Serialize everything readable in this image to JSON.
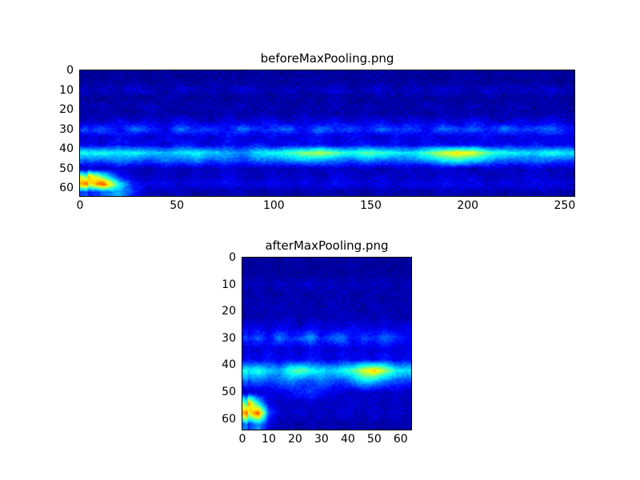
{
  "figure": {
    "background_color": "#ffffff",
    "colormap_name": "jet"
  },
  "chart_data": [
    {
      "type": "heatmap",
      "title": "beforeMaxPooling.png",
      "xlabel": "",
      "ylabel": "",
      "xlim": [
        0,
        255
      ],
      "ylim": [
        0,
        64
      ],
      "xticks": [
        0,
        50,
        100,
        150,
        200,
        250
      ],
      "yticks": [
        0,
        10,
        20,
        30,
        40,
        50,
        60
      ],
      "colormap": "jet",
      "grid_cols": 32,
      "grid_rows": 16,
      "noise": 0.08,
      "seed": 1234567,
      "notable_features": [
        "dark blue background with fine speckle noise",
        "speckled light-blue band around y=28-32 across full width",
        "bright cyan horizontal band at y=40-44 across full width",
        "green-yellow hotspots in band near x=112-136 and bright yellow near x=184-208",
        "red-orange diagonal blob at bottom-left around x=0-20, y=52-62"
      ],
      "values": [
        [
          0.03,
          0.02,
          0.04,
          0.02,
          0.03,
          0.05,
          0.02,
          0.03,
          0.02,
          0.04,
          0.03,
          0.02,
          0.05,
          0.03,
          0.02,
          0.04,
          0.02,
          0.03,
          0.05,
          0.02,
          0.03,
          0.04,
          0.02,
          0.03,
          0.02,
          0.05,
          0.03,
          0.02,
          0.04,
          0.03,
          0.02,
          0.03
        ],
        [
          0.02,
          0.04,
          0.03,
          0.05,
          0.02,
          0.03,
          0.04,
          0.02,
          0.05,
          0.03,
          0.02,
          0.04,
          0.03,
          0.02,
          0.05,
          0.03,
          0.04,
          0.02,
          0.03,
          0.05,
          0.02,
          0.04,
          0.03,
          0.02,
          0.05,
          0.03,
          0.02,
          0.04,
          0.02,
          0.05,
          0.03,
          0.02
        ],
        [
          0.05,
          0.08,
          0.04,
          0.1,
          0.06,
          0.04,
          0.09,
          0.05,
          0.07,
          0.04,
          0.1,
          0.06,
          0.05,
          0.08,
          0.04,
          0.07,
          0.1,
          0.05,
          0.06,
          0.09,
          0.04,
          0.08,
          0.05,
          0.1,
          0.06,
          0.04,
          0.09,
          0.05,
          0.08,
          0.06,
          0.1,
          0.05
        ],
        [
          0.03,
          0.02,
          0.04,
          0.03,
          0.02,
          0.05,
          0.03,
          0.02,
          0.04,
          0.02,
          0.03,
          0.05,
          0.02,
          0.04,
          0.03,
          0.02,
          0.05,
          0.03,
          0.02,
          0.04,
          0.03,
          0.05,
          0.02,
          0.03,
          0.04,
          0.02,
          0.05,
          0.03,
          0.02,
          0.04,
          0.03,
          0.02
        ],
        [
          0.04,
          0.06,
          0.03,
          0.05,
          0.07,
          0.04,
          0.03,
          0.06,
          0.05,
          0.03,
          0.07,
          0.04,
          0.06,
          0.03,
          0.05,
          0.04,
          0.07,
          0.03,
          0.06,
          0.04,
          0.05,
          0.03,
          0.07,
          0.05,
          0.04,
          0.06,
          0.03,
          0.05,
          0.07,
          0.04,
          0.06,
          0.03
        ],
        [
          0.03,
          0.05,
          0.04,
          0.03,
          0.06,
          0.04,
          0.05,
          0.03,
          0.04,
          0.06,
          0.03,
          0.05,
          0.04,
          0.03,
          0.06,
          0.05,
          0.03,
          0.04,
          0.06,
          0.03,
          0.05,
          0.04,
          0.03,
          0.06,
          0.04,
          0.05,
          0.03,
          0.06,
          0.04,
          0.03,
          0.05,
          0.04
        ],
        [
          0.08,
          0.05,
          0.12,
          0.07,
          0.1,
          0.06,
          0.13,
          0.08,
          0.05,
          0.11,
          0.07,
          0.09,
          0.12,
          0.06,
          0.1,
          0.08,
          0.13,
          0.07,
          0.09,
          0.11,
          0.06,
          0.12,
          0.08,
          0.1,
          0.07,
          0.13,
          0.09,
          0.06,
          0.11,
          0.08,
          0.12,
          0.07
        ],
        [
          0.15,
          0.22,
          0.12,
          0.25,
          0.18,
          0.1,
          0.24,
          0.16,
          0.2,
          0.12,
          0.26,
          0.15,
          0.19,
          0.23,
          0.11,
          0.25,
          0.17,
          0.21,
          0.13,
          0.24,
          0.16,
          0.2,
          0.12,
          0.25,
          0.18,
          0.22,
          0.14,
          0.26,
          0.16,
          0.2,
          0.24,
          0.14
        ],
        [
          0.1,
          0.07,
          0.13,
          0.09,
          0.06,
          0.12,
          0.08,
          0.11,
          0.07,
          0.13,
          0.09,
          0.06,
          0.12,
          0.08,
          0.1,
          0.13,
          0.07,
          0.11,
          0.09,
          0.06,
          0.13,
          0.08,
          0.12,
          0.07,
          0.1,
          0.09,
          0.13,
          0.06,
          0.11,
          0.08,
          0.12,
          0.09
        ],
        [
          0.12,
          0.09,
          0.15,
          0.1,
          0.13,
          0.08,
          0.16,
          0.11,
          0.09,
          0.14,
          0.1,
          0.16,
          0.08,
          0.13,
          0.11,
          0.15,
          0.09,
          0.12,
          0.16,
          0.1,
          0.14,
          0.08,
          0.15,
          0.12,
          0.1,
          0.16,
          0.09,
          0.13,
          0.11,
          0.15,
          0.1,
          0.12
        ],
        [
          0.38,
          0.42,
          0.36,
          0.4,
          0.34,
          0.3,
          0.36,
          0.4,
          0.33,
          0.3,
          0.26,
          0.36,
          0.4,
          0.44,
          0.52,
          0.56,
          0.48,
          0.4,
          0.48,
          0.44,
          0.38,
          0.36,
          0.46,
          0.58,
          0.66,
          0.6,
          0.46,
          0.4,
          0.36,
          0.33,
          0.42,
          0.36
        ],
        [
          0.24,
          0.2,
          0.26,
          0.22,
          0.18,
          0.24,
          0.2,
          0.27,
          0.19,
          0.22,
          0.16,
          0.24,
          0.21,
          0.27,
          0.3,
          0.28,
          0.24,
          0.2,
          0.26,
          0.22,
          0.2,
          0.24,
          0.28,
          0.36,
          0.4,
          0.34,
          0.26,
          0.22,
          0.2,
          0.24,
          0.21,
          0.19
        ],
        [
          0.07,
          0.05,
          0.09,
          0.06,
          0.04,
          0.08,
          0.05,
          0.07,
          0.04,
          0.09,
          0.06,
          0.05,
          0.08,
          0.04,
          0.07,
          0.06,
          0.09,
          0.05,
          0.07,
          0.04,
          0.08,
          0.06,
          0.05,
          0.09,
          0.07,
          0.04,
          0.08,
          0.05,
          0.06,
          0.09,
          0.05,
          0.07
        ],
        [
          0.72,
          0.45,
          0.15,
          0.08,
          0.06,
          0.09,
          0.05,
          0.08,
          0.06,
          0.1,
          0.07,
          0.05,
          0.09,
          0.06,
          0.08,
          0.05,
          0.1,
          0.07,
          0.06,
          0.09,
          0.05,
          0.08,
          0.06,
          0.1,
          0.07,
          0.09,
          0.05,
          0.08,
          0.06,
          0.09,
          0.07,
          0.05
        ],
        [
          0.6,
          0.82,
          0.4,
          0.14,
          0.1,
          0.12,
          0.08,
          0.11,
          0.09,
          0.13,
          0.1,
          0.08,
          0.12,
          0.09,
          0.11,
          0.08,
          0.13,
          0.1,
          0.09,
          0.12,
          0.08,
          0.11,
          0.09,
          0.13,
          0.1,
          0.12,
          0.08,
          0.11,
          0.09,
          0.12,
          0.1,
          0.08
        ],
        [
          0.12,
          0.22,
          0.3,
          0.15,
          0.05,
          0.04,
          0.06,
          0.03,
          0.05,
          0.04,
          0.06,
          0.03,
          0.05,
          0.04,
          0.03,
          0.06,
          0.04,
          0.05,
          0.03,
          0.06,
          0.04,
          0.05,
          0.03,
          0.06,
          0.05,
          0.04,
          0.06,
          0.03,
          0.05,
          0.04,
          0.06,
          0.04
        ]
      ]
    },
    {
      "type": "heatmap",
      "title": "afterMaxPooling.png",
      "xlabel": "",
      "ylabel": "",
      "xlim": [
        0,
        64
      ],
      "ylim": [
        0,
        64
      ],
      "xticks": [
        0,
        10,
        20,
        30,
        40,
        50,
        60
      ],
      "yticks": [
        0,
        10,
        20,
        30,
        40,
        50,
        60
      ],
      "colormap": "jet",
      "grid_cols": 16,
      "grid_rows": 16,
      "noise": 0.07,
      "seed": 7654321,
      "notable_features": [
        "dark blue background with fine speckle noise",
        "speckled light-blue band around y=28-32",
        "bright cyan horizontal band at y=40-44 with yellow hotspot near x=44-52",
        "red-orange blob at bottom-left around x=0-8, y=52-60"
      ],
      "values": [
        [
          0.03,
          0.02,
          0.04,
          0.03,
          0.02,
          0.05,
          0.03,
          0.02,
          0.04,
          0.03,
          0.05,
          0.02,
          0.03,
          0.04,
          0.02,
          0.03
        ],
        [
          0.02,
          0.04,
          0.03,
          0.02,
          0.05,
          0.03,
          0.02,
          0.04,
          0.03,
          0.02,
          0.04,
          0.03,
          0.05,
          0.02,
          0.04,
          0.03
        ],
        [
          0.05,
          0.07,
          0.04,
          0.08,
          0.05,
          0.06,
          0.09,
          0.04,
          0.07,
          0.05,
          0.08,
          0.04,
          0.06,
          0.07,
          0.04,
          0.06
        ],
        [
          0.03,
          0.05,
          0.04,
          0.03,
          0.06,
          0.04,
          0.03,
          0.05,
          0.04,
          0.06,
          0.03,
          0.05,
          0.04,
          0.03,
          0.05,
          0.04
        ],
        [
          0.04,
          0.06,
          0.05,
          0.07,
          0.04,
          0.06,
          0.05,
          0.04,
          0.07,
          0.05,
          0.06,
          0.04,
          0.07,
          0.05,
          0.04,
          0.06
        ],
        [
          0.05,
          0.04,
          0.06,
          0.05,
          0.07,
          0.04,
          0.06,
          0.05,
          0.04,
          0.07,
          0.05,
          0.06,
          0.04,
          0.06,
          0.05,
          0.04
        ],
        [
          0.08,
          0.11,
          0.07,
          0.12,
          0.09,
          0.07,
          0.13,
          0.08,
          0.1,
          0.07,
          0.12,
          0.09,
          0.08,
          0.11,
          0.07,
          0.1
        ],
        [
          0.14,
          0.22,
          0.12,
          0.26,
          0.16,
          0.2,
          0.28,
          0.14,
          0.22,
          0.25,
          0.12,
          0.2,
          0.16,
          0.24,
          0.18,
          0.12
        ],
        [
          0.09,
          0.07,
          0.12,
          0.08,
          0.1,
          0.07,
          0.12,
          0.09,
          0.07,
          0.11,
          0.08,
          0.1,
          0.07,
          0.12,
          0.08,
          0.1
        ],
        [
          0.12,
          0.1,
          0.14,
          0.09,
          0.13,
          0.1,
          0.15,
          0.11,
          0.09,
          0.14,
          0.1,
          0.13,
          0.11,
          0.15,
          0.1,
          0.12
        ],
        [
          0.36,
          0.42,
          0.33,
          0.3,
          0.44,
          0.5,
          0.4,
          0.36,
          0.33,
          0.4,
          0.46,
          0.6,
          0.68,
          0.55,
          0.4,
          0.36
        ],
        [
          0.2,
          0.24,
          0.18,
          0.22,
          0.26,
          0.2,
          0.18,
          0.24,
          0.2,
          0.18,
          0.26,
          0.36,
          0.33,
          0.24,
          0.2,
          0.18
        ],
        [
          0.07,
          0.06,
          0.09,
          0.1,
          0.13,
          0.16,
          0.18,
          0.14,
          0.1,
          0.08,
          0.06,
          0.09,
          0.07,
          0.06,
          0.08,
          0.06
        ],
        [
          0.75,
          0.35,
          0.1,
          0.06,
          0.08,
          0.06,
          0.09,
          0.05,
          0.07,
          0.06,
          0.09,
          0.06,
          0.08,
          0.05,
          0.07,
          0.06
        ],
        [
          0.58,
          0.82,
          0.2,
          0.08,
          0.06,
          0.09,
          0.06,
          0.08,
          0.06,
          0.1,
          0.07,
          0.06,
          0.09,
          0.06,
          0.08,
          0.06
        ],
        [
          0.15,
          0.28,
          0.1,
          0.04,
          0.05,
          0.03,
          0.06,
          0.04,
          0.05,
          0.03,
          0.06,
          0.04,
          0.05,
          0.03,
          0.05,
          0.04
        ]
      ]
    }
  ]
}
